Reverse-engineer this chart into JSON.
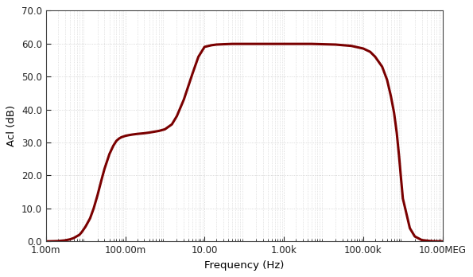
{
  "xlabel": "Frequency (Hz)",
  "ylabel": "Acl (dB)",
  "ylim": [
    0.0,
    70.0
  ],
  "yticks": [
    0.0,
    10.0,
    20.0,
    30.0,
    40.0,
    50.0,
    60.0,
    70.0
  ],
  "shown_xtick_positions": [
    0.001,
    0.1,
    10.0,
    1000.0,
    100000.0,
    10000000.0
  ],
  "shown_xtick_labels": [
    "1.00m",
    "100.00m",
    "10.00",
    "1.00k",
    "100.00k",
    "10.00MEG"
  ],
  "line_color": "#7a0000",
  "line_width": 2.2,
  "bg_color": "#ffffff",
  "grid_color": "#cccccc",
  "curve_freq": [
    0.001,
    0.0015,
    0.002,
    0.003,
    0.004,
    0.005,
    0.007,
    0.008,
    0.01,
    0.013,
    0.016,
    0.02,
    0.025,
    0.03,
    0.04,
    0.05,
    0.06,
    0.07,
    0.08,
    0.09,
    0.1,
    0.12,
    0.15,
    0.2,
    0.3,
    0.4,
    0.5,
    0.7,
    1.0,
    1.5,
    2.0,
    3.0,
    5.0,
    7.0,
    10.0,
    15.0,
    20.0,
    30.0,
    50.0,
    70.0,
    100.0,
    200.0,
    500.0,
    1000.0,
    2000.0,
    5000.0,
    10000.0,
    20000.0,
    50000.0,
    100000.0,
    150000.0,
    200000.0,
    300000.0,
    400000.0,
    500000.0,
    600000.0,
    700000.0,
    800000.0,
    900000.0,
    1000000.0,
    1500000.0,
    2000000.0,
    3000000.0,
    5000000.0,
    7000000.0,
    10000000.0
  ],
  "curve_db": [
    0.0,
    0.05,
    0.1,
    0.3,
    0.6,
    1.0,
    2.0,
    2.8,
    4.5,
    7.0,
    10.0,
    14.0,
    18.5,
    22.0,
    26.5,
    29.0,
    30.5,
    31.2,
    31.6,
    31.8,
    32.0,
    32.2,
    32.4,
    32.6,
    32.8,
    33.0,
    33.2,
    33.5,
    34.0,
    35.5,
    38.0,
    43.0,
    51.0,
    56.0,
    59.0,
    59.5,
    59.7,
    59.8,
    59.9,
    59.9,
    59.9,
    59.9,
    59.9,
    59.9,
    59.9,
    59.9,
    59.8,
    59.7,
    59.3,
    58.5,
    57.5,
    56.0,
    53.0,
    49.0,
    44.0,
    39.0,
    33.0,
    26.0,
    19.0,
    13.0,
    4.0,
    1.5,
    0.4,
    0.1,
    0.02,
    0.0
  ]
}
